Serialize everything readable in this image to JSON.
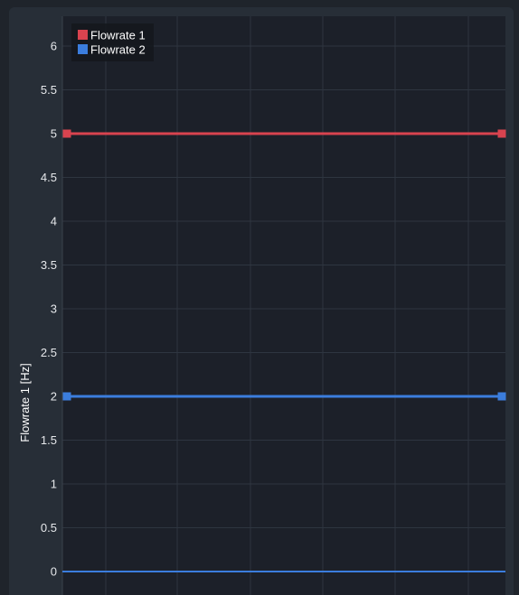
{
  "chart_data": {
    "type": "line",
    "ylabel": "Flowrate 1 [Hz]",
    "xlabel": "",
    "ylim": [
      0,
      6.3
    ],
    "yticks": [
      0,
      0.5,
      1,
      1.5,
      2,
      2.5,
      3,
      3.5,
      4,
      4.5,
      5,
      5.5,
      6
    ],
    "ytick_labels": [
      "0",
      "0.5",
      "1",
      "1.5",
      "2",
      "2.5",
      "3",
      "3.5",
      "4",
      "4.5",
      "5",
      "5.5",
      "6"
    ],
    "grid": true,
    "legend_position": "top-left",
    "series": [
      {
        "name": "Flowrate 1",
        "color": "#d9434f",
        "values": [
          5,
          5
        ]
      },
      {
        "name": "Flowrate 2",
        "color": "#3b7ddd",
        "values": [
          2,
          2
        ]
      }
    ],
    "baseline": {
      "value": 0,
      "color": "#3b7ddd"
    }
  },
  "colors": {
    "background": "#1f242b",
    "panel": "#272e37",
    "plot_area": "#1c2029",
    "grid": "#2e3540"
  }
}
